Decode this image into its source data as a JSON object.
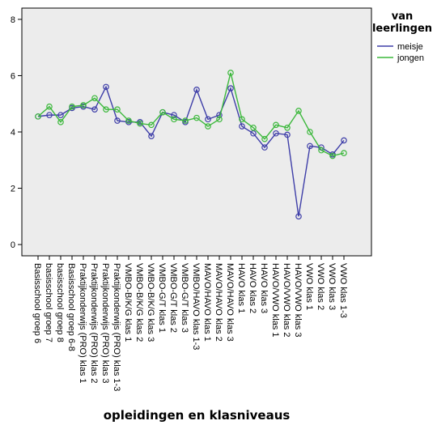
{
  "chart_data": {
    "type": "line",
    "xlabel": "opleidingen en klasniveaus",
    "ylabel": "",
    "ylim": [
      -0.4,
      8.4
    ],
    "yticks": [
      0,
      2,
      4,
      6,
      8
    ],
    "grid": false,
    "legend_position": "top-right",
    "legend_title_lines": [
      "van",
      "leerlingen"
    ],
    "markers": "open-circle",
    "categories": [
      "Basisschool groep 6",
      "basisschool groep 7",
      "basisschool groep 8",
      "Basisschool groep 6-8",
      "Praktijkonderwijs (PRO) klas 1",
      "Praktijkonderwijs (PRO) klas 2",
      "Praktijkonderwijs (PRO) klas 3",
      "Praktijkonderwijs (PRO) klas 1-3",
      "VMBO-B/K/G klas 1",
      "VMBO-B/K/G klas 2",
      "VMBO-B/K/G klas 3",
      "VMBO-G/T klas 1",
      "VMBO-G/T klas 2",
      "VMBO-G/T klas 3",
      "VMBO/HAVO klas 1-3",
      "MAVO/HAVO klas 1",
      "MAVO/HAVO klas 2",
      "MAVO/HAVO klas 3",
      "HAVO klas 1",
      "HAVO klas 2",
      "HAVO klas 3",
      "HAVO/VWO klas 1",
      "HAVO/VWO klas 2",
      "HAVO/VWO klas 3",
      "VWO klas 1",
      "VWO klas 2",
      "VWO klas 3",
      "VWO klas 1-3"
    ],
    "series": [
      {
        "name": "meisje",
        "color": "#3e3ea8",
        "values": [
          4.55,
          4.6,
          4.6,
          4.85,
          4.9,
          4.8,
          5.6,
          4.4,
          4.35,
          4.35,
          3.85,
          4.7,
          4.6,
          4.35,
          5.5,
          4.45,
          4.6,
          5.55,
          4.2,
          3.95,
          3.45,
          3.95,
          3.9,
          1.0,
          3.5,
          3.45,
          3.2,
          3.7
        ]
      },
      {
        "name": "jongen",
        "color": "#3cb83c",
        "values": [
          4.55,
          4.9,
          4.35,
          4.9,
          4.95,
          5.2,
          4.8,
          4.8,
          4.4,
          4.3,
          4.25,
          4.7,
          4.45,
          4.4,
          4.5,
          4.2,
          4.45,
          6.1,
          4.45,
          4.15,
          3.75,
          4.25,
          4.15,
          4.75,
          4.0,
          3.35,
          3.15,
          3.25
        ]
      }
    ]
  }
}
